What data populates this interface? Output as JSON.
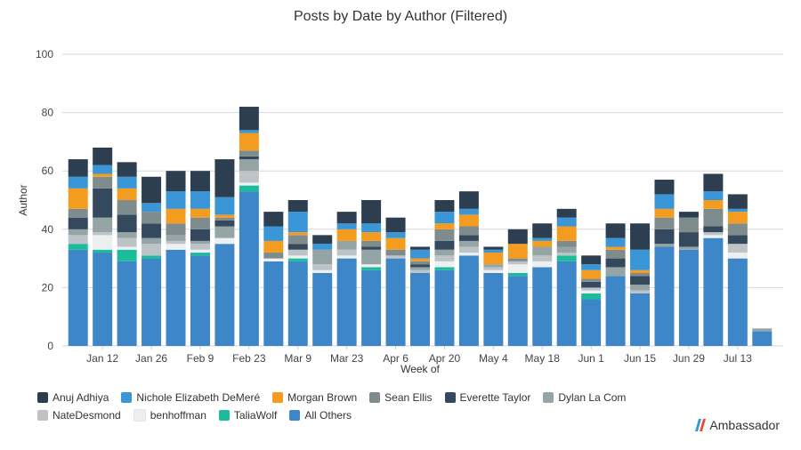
{
  "chart_data": {
    "type": "bar",
    "stacked": true,
    "title": "Posts by Date by Author (Filtered)",
    "xlabel": "Week of",
    "ylabel": "Author",
    "ylim": [
      0,
      100
    ],
    "yticks": [
      0,
      20,
      40,
      60,
      80,
      100
    ],
    "grid": true,
    "legend_position": "bottom",
    "categories": [
      "",
      "Jan 12",
      "",
      "Jan 26",
      "",
      "Feb 9",
      "",
      "Feb 23",
      "",
      "Mar 9",
      "",
      "Mar 23",
      "",
      "Apr 6",
      "",
      "Apr 20",
      "",
      "May 4",
      "",
      "May 18",
      "",
      "Jun 1",
      "",
      "Jun 15",
      "",
      "Jun 29",
      "",
      "Jul 13",
      ""
    ],
    "series": [
      {
        "name": "All Others",
        "color": "#3d87c9",
        "values": [
          33,
          32,
          29,
          30,
          33,
          31,
          35,
          53,
          29,
          29,
          25,
          30,
          26,
          30,
          25,
          26,
          31,
          25,
          24,
          27,
          29,
          16,
          24,
          18,
          34,
          33,
          37,
          30,
          5
        ]
      },
      {
        "name": "TaliaWolf",
        "color": "#1abc9c",
        "values": [
          2,
          1,
          4,
          1,
          0,
          1,
          0,
          2,
          0,
          1,
          0,
          0,
          1,
          0,
          0,
          1,
          0,
          0,
          1,
          0,
          2,
          2,
          0,
          0,
          0,
          0,
          0,
          0,
          0
        ]
      },
      {
        "name": "benhoffman",
        "color": "#ecf0f1",
        "values": [
          0,
          5,
          1,
          0,
          2,
          1,
          2,
          1,
          1,
          1,
          1,
          1,
          1,
          0,
          0,
          2,
          1,
          1,
          3,
          2,
          0,
          1,
          0,
          0,
          0,
          0,
          1,
          2,
          0
        ]
      },
      {
        "name": "NateDesmond",
        "color": "#bdc3c7",
        "values": [
          3,
          1,
          3,
          4,
          1,
          2,
          0,
          4,
          0,
          2,
          2,
          2,
          0,
          1,
          1,
          2,
          2,
          1,
          1,
          2,
          1,
          1,
          0,
          1,
          0,
          0,
          1,
          3,
          0
        ]
      },
      {
        "name": "Dylan La Com",
        "color": "#95a5a6",
        "values": [
          2,
          5,
          2,
          2,
          2,
          1,
          4,
          4,
          0,
          0,
          5,
          3,
          5,
          0,
          1,
          2,
          2,
          1,
          0,
          3,
          2,
          0,
          3,
          2,
          1,
          1,
          0,
          0,
          1
        ]
      },
      {
        "name": "Everette Taylor",
        "color": "#34495e",
        "values": [
          4,
          10,
          6,
          5,
          0,
          4,
          2,
          1,
          0,
          2,
          0,
          0,
          1,
          0,
          1,
          3,
          2,
          0,
          0,
          0,
          0,
          2,
          3,
          3,
          5,
          5,
          2,
          3,
          0
        ]
      },
      {
        "name": "Sean Ellis",
        "color": "#7f8c8d",
        "values": [
          3,
          4,
          5,
          4,
          4,
          4,
          1,
          2,
          2,
          3,
          0,
          0,
          2,
          2,
          1,
          4,
          3,
          0,
          1,
          0,
          2,
          1,
          3,
          1,
          4,
          5,
          6,
          4,
          0
        ]
      },
      {
        "name": "Morgan Brown",
        "color": "#f39c1f",
        "values": [
          7,
          1,
          4,
          0,
          5,
          3,
          1,
          6,
          4,
          1,
          0,
          4,
          3,
          4,
          1,
          2,
          4,
          4,
          5,
          2,
          5,
          3,
          1,
          1,
          3,
          0,
          3,
          4,
          0
        ]
      },
      {
        "name": "Nichole Elizabeth DeMeré",
        "color": "#3a96d6",
        "values": [
          4,
          3,
          4,
          3,
          6,
          6,
          6,
          1,
          5,
          7,
          2,
          2,
          3,
          2,
          3,
          4,
          2,
          1,
          0,
          1,
          3,
          2,
          3,
          7,
          5,
          0,
          3,
          1,
          0
        ]
      },
      {
        "name": "Anuj Adhiya",
        "color": "#2c3e50",
        "values": [
          6,
          6,
          5,
          9,
          7,
          7,
          13,
          8,
          5,
          4,
          3,
          4,
          8,
          5,
          1,
          4,
          6,
          1,
          5,
          5,
          3,
          3,
          5,
          9,
          5,
          2,
          6,
          5,
          0
        ]
      }
    ],
    "legend_order": [
      "Anuj Adhiya",
      "Nichole Elizabeth DeMeré",
      "Morgan Brown",
      "Sean Ellis",
      "Everette Taylor",
      "Dylan La Com",
      "NateDesmond",
      "benhoffman",
      "TaliaWolf",
      "All Others"
    ]
  },
  "branding": {
    "logo_text": "Ambassador"
  }
}
